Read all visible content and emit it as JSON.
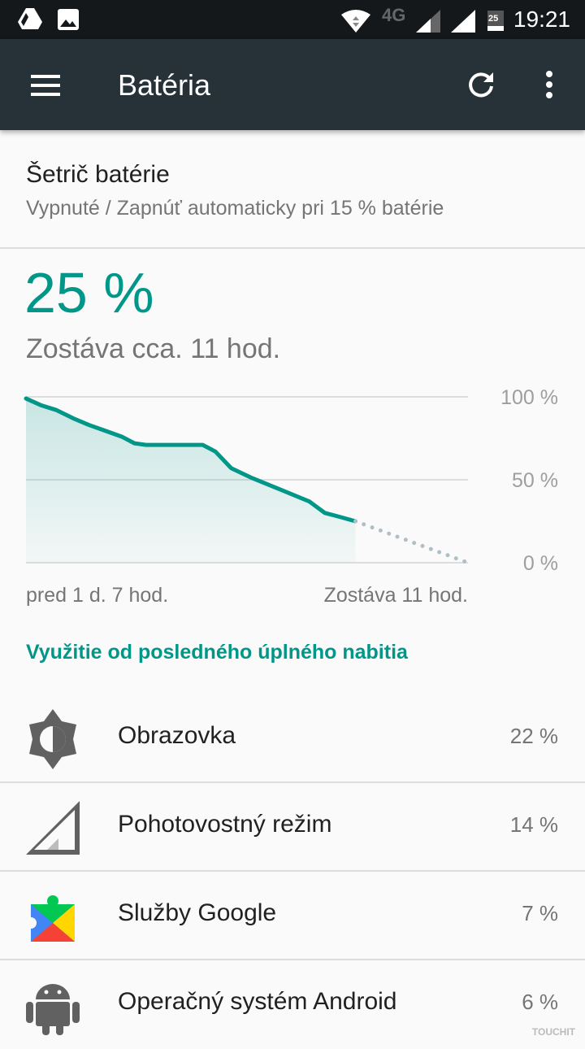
{
  "status_bar": {
    "time": "19:21",
    "network": "4G",
    "battery_level": "25",
    "icons": [
      "drive-icon",
      "image-icon",
      "wifi-icon",
      "signal-icon",
      "signal-icon",
      "battery-icon"
    ]
  },
  "app_bar": {
    "title": "Batéria",
    "icons": [
      "menu-icon",
      "refresh-icon",
      "more-vert-icon"
    ]
  },
  "battery_saver": {
    "title": "Šetrič batérie",
    "subtitle": "Vypnuté / Zapnúť automaticky pri 15 % batérie"
  },
  "battery": {
    "percent": "25 %",
    "remaining": "Zostáva cca. 11 hod."
  },
  "chart_data": {
    "type": "area",
    "x_unit": "hours",
    "y_ticks": [
      "100 %",
      "50 %",
      "0 %"
    ],
    "ylim": [
      0,
      100
    ],
    "grid": true,
    "x_start_label": "pred 1 d. 7 hod.",
    "x_end_label": "Zostáva 11 hod.",
    "history": {
      "x": [
        0,
        1.4,
        2.9,
        4.5,
        6.0,
        9.1,
        10.3,
        11.4,
        16.8,
        18.0,
        19.5,
        21.5,
        24.2,
        26.9,
        28.4,
        29.6,
        31.3
      ],
      "y": [
        99,
        95,
        92,
        87,
        83,
        76,
        72,
        71,
        71,
        67,
        57,
        51,
        44,
        37,
        30,
        28,
        25
      ]
    },
    "projection": {
      "x": [
        31.3,
        42
      ],
      "y": [
        25,
        0
      ]
    },
    "colors": {
      "line": "#009688",
      "projection": "#b0bec5"
    }
  },
  "usage": {
    "header": "Využitie od posledného úplného nabitia",
    "items": [
      {
        "label": "Obrazovka",
        "value": "22 %",
        "icon": "brightness-icon"
      },
      {
        "label": "Pohotovostný režim",
        "value": "14 %",
        "icon": "cell-standby-icon"
      },
      {
        "label": "Služby Google",
        "value": "7 %",
        "icon": "google-play-services-icon"
      },
      {
        "label": "Operačný systém Android",
        "value": "6 %",
        "icon": "android-icon"
      }
    ]
  },
  "watermark": "TOUCHIT"
}
